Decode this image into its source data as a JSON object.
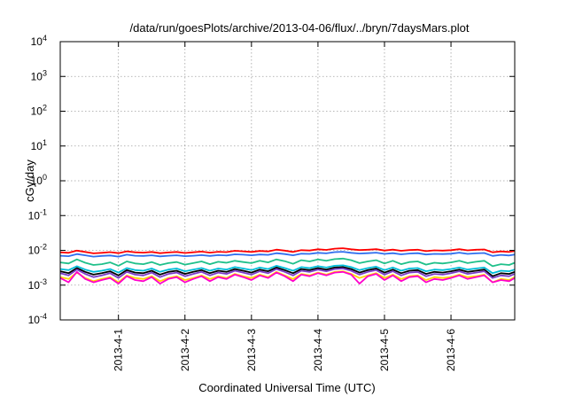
{
  "chart_data": {
    "type": "line",
    "title": "/data/run/goesPlots/archive/2013-04-06/flux/../bryn/7daysMars.plot",
    "xlabel": "Coordinated Universal Time (UTC)",
    "ylabel": "cGy/day",
    "yscale": "log",
    "ylim": [
      0.0001,
      10000
    ],
    "y_ticks": [
      {
        "base": "10",
        "exp": "-4",
        "value": 0.0001
      },
      {
        "base": "10",
        "exp": "-3",
        "value": 0.001
      },
      {
        "base": "10",
        "exp": "-2",
        "value": 0.01
      },
      {
        "base": "10",
        "exp": "-1",
        "value": 0.1
      },
      {
        "base": "10",
        "exp": "0",
        "value": 1
      },
      {
        "base": "10",
        "exp": "1",
        "value": 10
      },
      {
        "base": "10",
        "exp": "2",
        "value": 100
      },
      {
        "base": "10",
        "exp": "3",
        "value": 1000
      },
      {
        "base": "10",
        "exp": "4",
        "value": 10000
      }
    ],
    "xlim": [
      "2013-03-31 03:00",
      "2013-04-06 23:00"
    ],
    "x_ticks": [
      {
        "label": "2013-4-1",
        "value": "2013-04-01 00:00"
      },
      {
        "label": "2013-4-2",
        "value": "2013-04-02 00:00"
      },
      {
        "label": "2013-4-3",
        "value": "2013-04-03 00:00"
      },
      {
        "label": "2013-4-4",
        "value": "2013-04-04 00:00"
      },
      {
        "label": "2013-4-5",
        "value": "2013-04-05 00:00"
      },
      {
        "label": "2013-4-6",
        "value": "2013-04-06 00:00"
      }
    ],
    "grid": true,
    "x": [
      "2013-03-31 03:00",
      "2013-03-31 06:00",
      "2013-03-31 09:00",
      "2013-03-31 12:00",
      "2013-03-31 15:00",
      "2013-03-31 18:00",
      "2013-03-31 21:00",
      "2013-04-01 00:00",
      "2013-04-01 03:00",
      "2013-04-01 06:00",
      "2013-04-01 09:00",
      "2013-04-01 12:00",
      "2013-04-01 15:00",
      "2013-04-01 18:00",
      "2013-04-01 21:00",
      "2013-04-02 00:00",
      "2013-04-02 03:00",
      "2013-04-02 06:00",
      "2013-04-02 09:00",
      "2013-04-02 12:00",
      "2013-04-02 15:00",
      "2013-04-02 18:00",
      "2013-04-02 21:00",
      "2013-04-03 00:00",
      "2013-04-03 03:00",
      "2013-04-03 06:00",
      "2013-04-03 09:00",
      "2013-04-03 12:00",
      "2013-04-03 15:00",
      "2013-04-03 18:00",
      "2013-04-03 21:00",
      "2013-04-04 00:00",
      "2013-04-04 03:00",
      "2013-04-04 06:00",
      "2013-04-04 09:00",
      "2013-04-04 12:00",
      "2013-04-04 15:00",
      "2013-04-04 18:00",
      "2013-04-04 21:00",
      "2013-04-05 00:00",
      "2013-04-05 03:00",
      "2013-04-05 06:00",
      "2013-04-05 09:00",
      "2013-04-05 12:00",
      "2013-04-05 15:00",
      "2013-04-05 18:00",
      "2013-04-05 21:00",
      "2013-04-06 00:00",
      "2013-04-06 03:00",
      "2013-04-06 06:00",
      "2013-04-06 09:00",
      "2013-04-06 12:00",
      "2013-04-06 15:00",
      "2013-04-06 18:00",
      "2013-04-06 21:00",
      "2013-04-06 23:00"
    ],
    "series": [
      {
        "color": "#ff0000",
        "values": [
          0.0088,
          0.0085,
          0.0098,
          0.009,
          0.0082,
          0.0085,
          0.0089,
          0.0083,
          0.0094,
          0.0088,
          0.0086,
          0.009,
          0.0083,
          0.0087,
          0.009,
          0.0084,
          0.0088,
          0.0092,
          0.0086,
          0.0091,
          0.0089,
          0.0097,
          0.0094,
          0.009,
          0.0096,
          0.0093,
          0.0105,
          0.0098,
          0.009,
          0.0101,
          0.0099,
          0.0107,
          0.0103,
          0.0112,
          0.0115,
          0.0107,
          0.0102,
          0.0104,
          0.0108,
          0.0099,
          0.0105,
          0.0097,
          0.0102,
          0.0104,
          0.0095,
          0.01,
          0.0098,
          0.0101,
          0.0108,
          0.01,
          0.0104,
          0.0106,
          0.0088,
          0.0093,
          0.009,
          0.0096
        ]
      },
      {
        "color": "#2f6fef",
        "values": [
          0.007,
          0.0068,
          0.0078,
          0.0072,
          0.0066,
          0.0069,
          0.0071,
          0.0066,
          0.0075,
          0.007,
          0.0069,
          0.0072,
          0.0067,
          0.007,
          0.0072,
          0.0068,
          0.007,
          0.0073,
          0.0069,
          0.0073,
          0.0071,
          0.0077,
          0.0075,
          0.0072,
          0.0076,
          0.0074,
          0.0083,
          0.0078,
          0.0072,
          0.008,
          0.0079,
          0.0085,
          0.0082,
          0.0089,
          0.0091,
          0.0085,
          0.0081,
          0.0083,
          0.0086,
          0.0079,
          0.0083,
          0.0077,
          0.0081,
          0.0083,
          0.0076,
          0.0079,
          0.0078,
          0.008,
          0.0086,
          0.0079,
          0.0082,
          0.0084,
          0.0069,
          0.0074,
          0.0071,
          0.0076
        ]
      },
      {
        "color": "#1fc08a",
        "values": [
          0.0045,
          0.0042,
          0.0055,
          0.0044,
          0.0038,
          0.004,
          0.0045,
          0.0036,
          0.0048,
          0.0042,
          0.004,
          0.0046,
          0.0038,
          0.0043,
          0.0046,
          0.0039,
          0.0043,
          0.0048,
          0.004,
          0.0047,
          0.0044,
          0.005,
          0.0046,
          0.0043,
          0.005,
          0.0045,
          0.0055,
          0.0049,
          0.0041,
          0.0052,
          0.0048,
          0.0055,
          0.005,
          0.0056,
          0.0058,
          0.0052,
          0.0043,
          0.0048,
          0.0052,
          0.0042,
          0.005,
          0.004,
          0.0046,
          0.0048,
          0.0039,
          0.0044,
          0.0042,
          0.0045,
          0.005,
          0.0043,
          0.0047,
          0.005,
          0.0035,
          0.004,
          0.0038,
          0.0044
        ]
      },
      {
        "color": "#00bcd8",
        "values": [
          0.0029,
          0.0027,
          0.0035,
          0.0028,
          0.0024,
          0.0026,
          0.0029,
          0.0023,
          0.0031,
          0.0027,
          0.0026,
          0.003,
          0.0024,
          0.0028,
          0.003,
          0.0025,
          0.0028,
          0.0031,
          0.0026,
          0.003,
          0.0028,
          0.0033,
          0.003,
          0.0027,
          0.0032,
          0.0029,
          0.0036,
          0.0031,
          0.0026,
          0.0033,
          0.0031,
          0.0035,
          0.0032,
          0.0036,
          0.0037,
          0.0033,
          0.0027,
          0.0031,
          0.0034,
          0.0027,
          0.0032,
          0.0026,
          0.003,
          0.0031,
          0.0025,
          0.0028,
          0.0027,
          0.0029,
          0.0032,
          0.0028,
          0.003,
          0.0032,
          0.0022,
          0.0026,
          0.0025,
          0.0028
        ]
      },
      {
        "color": "#000000",
        "values": [
          0.0025,
          0.0022,
          0.0031,
          0.0024,
          0.002,
          0.0022,
          0.0025,
          0.0019,
          0.0027,
          0.0023,
          0.0022,
          0.0026,
          0.002,
          0.0024,
          0.0026,
          0.0021,
          0.0024,
          0.0027,
          0.0022,
          0.0026,
          0.0024,
          0.0029,
          0.0026,
          0.0023,
          0.0028,
          0.0025,
          0.0032,
          0.0027,
          0.0022,
          0.0029,
          0.0027,
          0.0031,
          0.0028,
          0.0032,
          0.0033,
          0.0029,
          0.0023,
          0.0027,
          0.003,
          0.0023,
          0.0028,
          0.0022,
          0.0026,
          0.0027,
          0.0021,
          0.0024,
          0.0023,
          0.0025,
          0.0028,
          0.0024,
          0.0026,
          0.0028,
          0.0018,
          0.0022,
          0.0021,
          0.0024
        ]
      },
      {
        "color": "#7a3cc8",
        "values": [
          0.0022,
          0.0019,
          0.0028,
          0.0021,
          0.0017,
          0.0019,
          0.0022,
          0.0016,
          0.0024,
          0.002,
          0.0019,
          0.0023,
          0.0017,
          0.0021,
          0.0023,
          0.0018,
          0.0021,
          0.0024,
          0.0019,
          0.0023,
          0.0021,
          0.0026,
          0.0023,
          0.002,
          0.0025,
          0.0022,
          0.0029,
          0.0024,
          0.0019,
          0.0026,
          0.0024,
          0.0028,
          0.0025,
          0.0029,
          0.003,
          0.0026,
          0.002,
          0.0024,
          0.0027,
          0.002,
          0.0025,
          0.0019,
          0.0023,
          0.0024,
          0.0018,
          0.0021,
          0.002,
          0.0022,
          0.0025,
          0.0021,
          0.0023,
          0.0025,
          0.0016,
          0.0019,
          0.0018,
          0.0021
        ]
      },
      {
        "color": "#ffd700",
        "values": [
          0.0017,
          0.0015,
          0.0023,
          0.0016,
          0.0013,
          0.0015,
          0.0017,
          0.0012,
          0.0019,
          0.0016,
          0.0015,
          0.0018,
          0.0013,
          0.0016,
          0.0018,
          0.0014,
          0.0016,
          0.0019,
          0.0015,
          0.0018,
          0.0016,
          0.0021,
          0.0018,
          0.0016,
          0.002,
          0.0017,
          0.0024,
          0.0019,
          0.0015,
          0.0021,
          0.0019,
          0.0023,
          0.002,
          0.0024,
          0.0025,
          0.0021,
          0.0016,
          0.0019,
          0.0022,
          0.0016,
          0.002,
          0.0015,
          0.0018,
          0.0019,
          0.0014,
          0.0017,
          0.0016,
          0.0017,
          0.002,
          0.0017,
          0.0018,
          0.002,
          0.0012,
          0.0015,
          0.0014,
          0.0017
        ]
      },
      {
        "color": "#ff00cc",
        "values": [
          0.0016,
          0.0012,
          0.0024,
          0.0015,
          0.0012,
          0.0014,
          0.0016,
          0.0011,
          0.0018,
          0.0014,
          0.0013,
          0.0017,
          0.0011,
          0.0015,
          0.0017,
          0.0012,
          0.0015,
          0.0018,
          0.0013,
          0.0017,
          0.0015,
          0.002,
          0.0017,
          0.0014,
          0.0019,
          0.0016,
          0.0023,
          0.0018,
          0.0013,
          0.002,
          0.0018,
          0.0022,
          0.0019,
          0.0023,
          0.0024,
          0.002,
          0.0011,
          0.0018,
          0.0021,
          0.0014,
          0.0019,
          0.0013,
          0.0017,
          0.0018,
          0.0012,
          0.0015,
          0.0014,
          0.0016,
          0.0019,
          0.0015,
          0.0017,
          0.0019,
          0.0012,
          0.0014,
          0.0013,
          0.0016
        ]
      }
    ]
  }
}
